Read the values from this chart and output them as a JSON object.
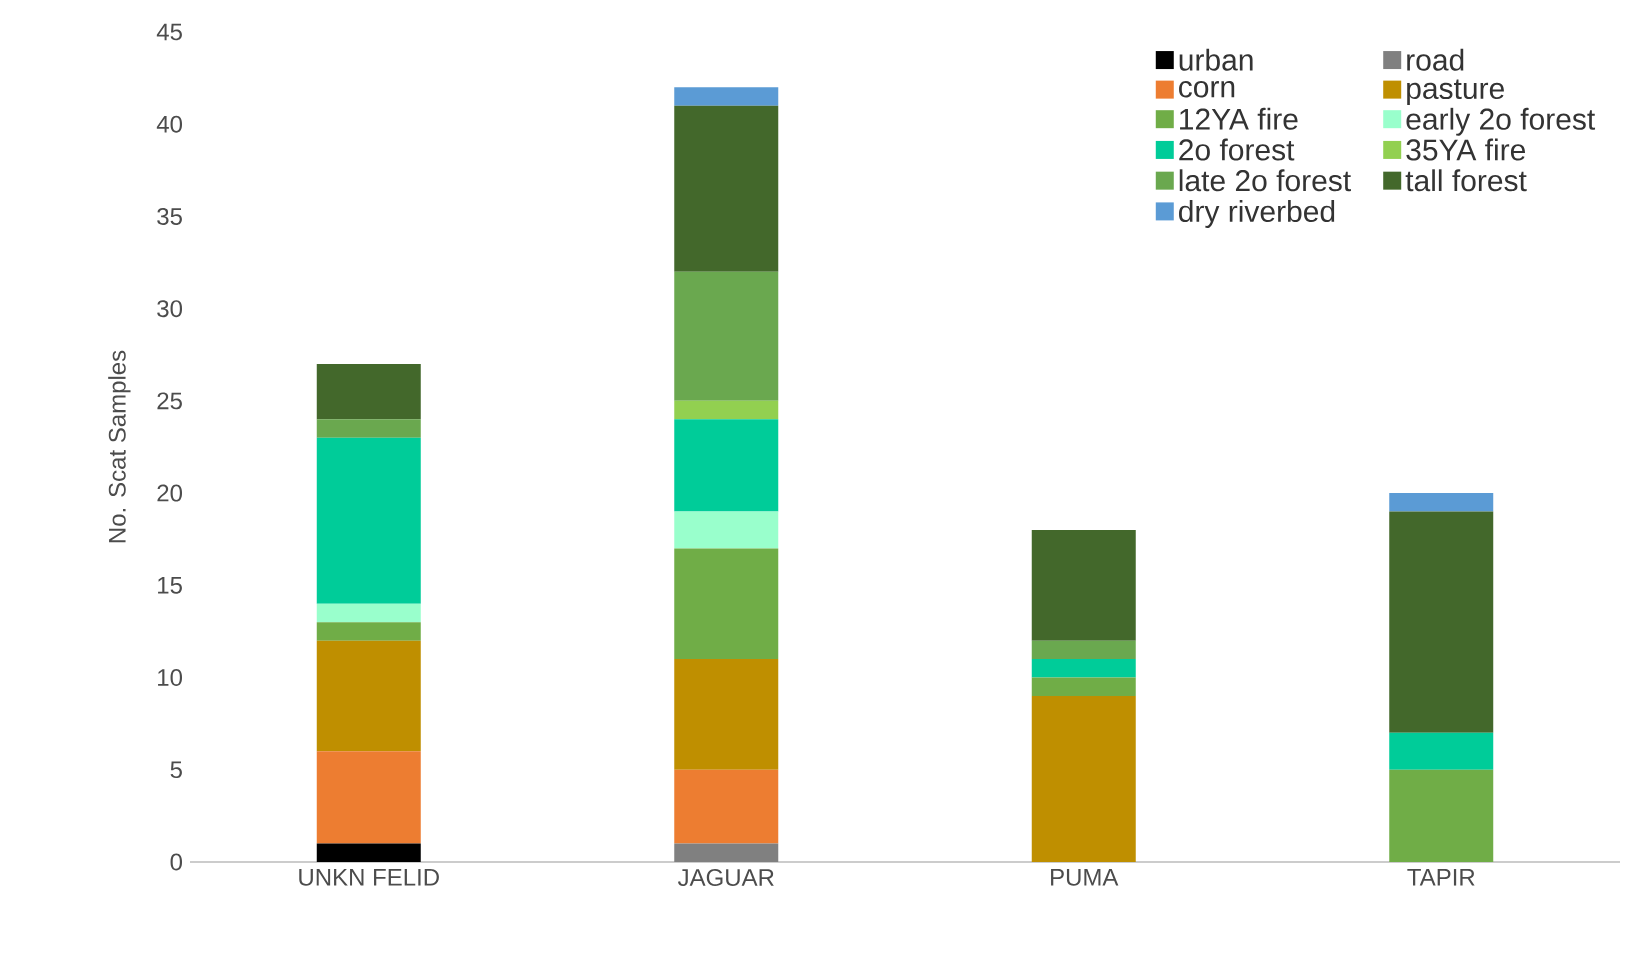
{
  "chart_data": {
    "type": "bar",
    "stacked": true,
    "ylabel": "No. Scat Samples",
    "categories": [
      "UNKN FELID",
      "JAGUAR",
      "PUMA",
      "TAPIR"
    ],
    "ylim": [
      0,
      45
    ],
    "yticks": [
      0,
      5,
      10,
      15,
      20,
      25,
      30,
      35,
      40,
      45
    ],
    "grid": false,
    "legend": "top right",
    "series": [
      {
        "name": "urban",
        "color": "#000000",
        "values": [
          1,
          0,
          0,
          0
        ]
      },
      {
        "name": "road",
        "color": "#808080",
        "values": [
          0,
          1,
          0,
          0
        ]
      },
      {
        "name": "corn",
        "color": "#ed7d31",
        "values": [
          5,
          4,
          0,
          0
        ]
      },
      {
        "name": "pasture",
        "color": "#bf8f00",
        "values": [
          6,
          6,
          9,
          0
        ]
      },
      {
        "name": "12YA fire",
        "color": "#70ad47",
        "values": [
          1,
          6,
          1,
          5
        ]
      },
      {
        "name": "early 2o forest",
        "color": "#99ffcc",
        "values": [
          1,
          2,
          0,
          0
        ]
      },
      {
        "name": "2o forest",
        "color": "#00cc99",
        "values": [
          9,
          5,
          1,
          2
        ]
      },
      {
        "name": "35YA fire",
        "color": "#92d050",
        "values": [
          0,
          1,
          0,
          0
        ]
      },
      {
        "name": "late 2o forest",
        "color": "#6aa84f",
        "values": [
          1,
          7,
          1,
          0
        ]
      },
      {
        "name": "tall forest",
        "color": "#43682b",
        "values": [
          3,
          9,
          6,
          12
        ]
      },
      {
        "name": "dry riverbed",
        "color": "#5b9bd5",
        "values": [
          0,
          1,
          0,
          1
        ]
      }
    ]
  }
}
